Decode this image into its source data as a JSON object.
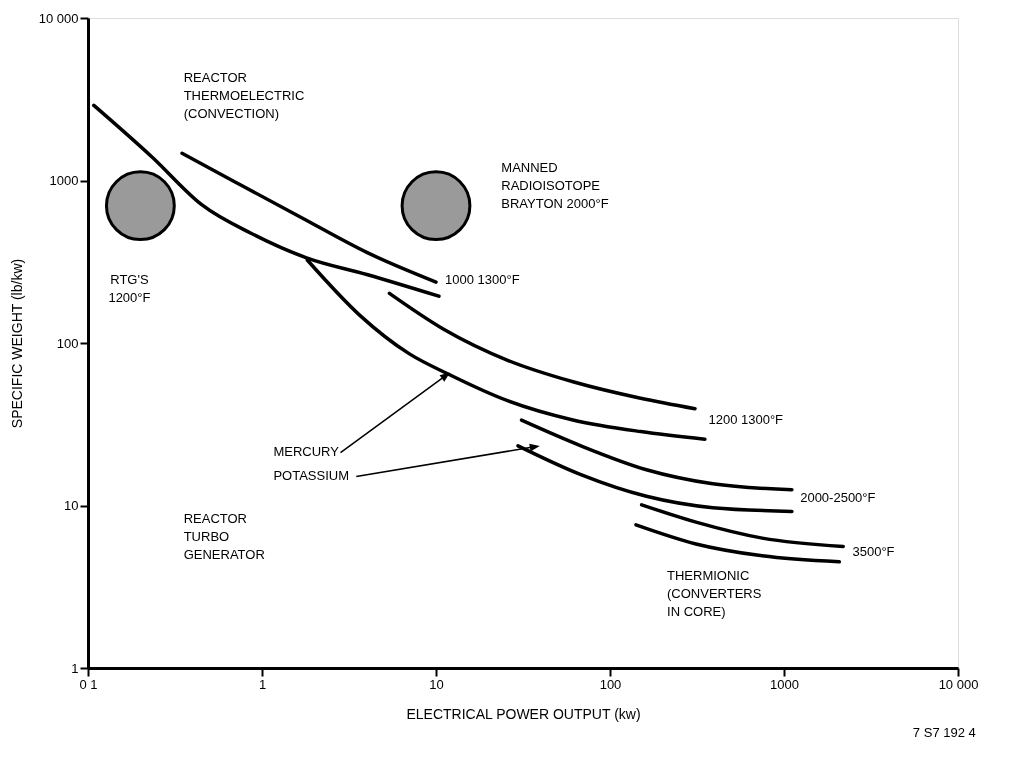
{
  "chart_data": {
    "type": "line",
    "xlabel": "ELECTRICAL POWER OUTPUT (kw)",
    "ylabel": "SPECIFIC WEIGHT (lb/kw)",
    "log": "xy",
    "grid": false,
    "xlim": [
      0.1,
      10000
    ],
    "ylim": [
      1,
      10000
    ],
    "xticks": [
      {
        "value": 0.1,
        "label": "0 1"
      },
      1,
      10,
      100,
      1000,
      {
        "value": 10000,
        "label": "10 000"
      }
    ],
    "yticks": [
      1,
      10,
      100,
      1000,
      {
        "value": 10000,
        "label": "10 000"
      }
    ],
    "series": [
      {
        "color": "#000000",
        "x": [
          0.108,
          0.234,
          0.45,
          0.87,
          1.82,
          4.0,
          10.4
        ],
        "values": [
          2900,
          1390,
          710,
          472,
          333,
          264,
          194
        ]
      },
      {
        "color": "#000000",
        "x": [
          0.347,
          0.7,
          1.67,
          4.0,
          10
        ],
        "values": [
          1470,
          980,
          594,
          361,
          237
        ]
      },
      {
        "color": "#000000",
        "x": [
          1.82,
          3.65,
          7.0,
          11.9,
          26,
          62,
          150,
          351
        ],
        "values": [
          324,
          148,
          86,
          64,
          44,
          33.5,
          28.5,
          25.6
        ]
      },
      {
        "color": "#000000",
        "x": [
          5.4,
          11,
          26,
          62,
          150,
          308
        ],
        "values": [
          202,
          122,
          78,
          57.5,
          45.7,
          39.4
        ]
      },
      {
        "color": "#000000",
        "x": [
          31,
          68,
          162,
          390,
          1110
        ],
        "values": [
          33.5,
          23.3,
          16.6,
          13.6,
          12.5
        ]
      },
      {
        "color": "#000000",
        "x": [
          29.6,
          68,
          162,
          390,
          1110
        ],
        "values": [
          23.3,
          15.5,
          11.4,
          9.7,
          9.2
        ]
      },
      {
        "color": "#000000",
        "x": [
          152,
          312,
          750,
          2190
        ],
        "values": [
          10.1,
          7.9,
          6.3,
          5.6
        ]
      },
      {
        "color": "#000000",
        "x": [
          141,
          312,
          750,
          2080
        ],
        "values": [
          7.6,
          5.8,
          4.9,
          4.5
        ]
      },
      {
        "type": "scatter",
        "marker": "circle",
        "color": "#000000",
        "x": [
          0.2,
          10
        ],
        "values": [
          700,
          700
        ]
      }
    ],
    "annotations": [
      "REACTOR\nTHERMOELECTRIC\n(CONVECTION)",
      "RTG'S\n1200°F",
      "MANNED\nRADIOISOTOPE\nBRAYTON 2000°F",
      "1000 1300°F",
      "1200 1300°F",
      "2000-2500°F",
      "3500°F",
      "THERMIONIC\n(CONVERTERS\nIN CORE)",
      "REACTOR\nTURBO\nGENERATOR",
      "MERCURY",
      "POTASSIUM",
      "7 S7 192 4"
    ]
  }
}
